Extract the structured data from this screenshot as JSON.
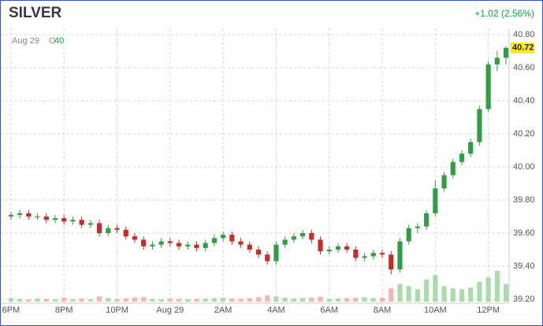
{
  "header": {
    "title": "SILVER",
    "change": "+1.02 (2.56%)"
  },
  "chart_data": {
    "type": "candlestick",
    "legend": {
      "date": "Aug 29",
      "open_label": "O",
      "open_value": "40"
    },
    "x": [
      0,
      20,
      40,
      60,
      80,
      100,
      120,
      140,
      160,
      180,
      200,
      220,
      240,
      260,
      280,
      300,
      320,
      340,
      360,
      380,
      400,
      420,
      440,
      460,
      480,
      500,
      520,
      540,
      560,
      580,
      600,
      620,
      640,
      660,
      680,
      700,
      720,
      740,
      760,
      780,
      800,
      820,
      840,
      860,
      880,
      900,
      920,
      940,
      960,
      980,
      1000,
      1020,
      1040,
      1060,
      1080,
      1100,
      1120
    ],
    "open": [
      39.7,
      39.71,
      39.72,
      39.7,
      39.7,
      39.68,
      39.69,
      39.67,
      39.68,
      39.65,
      39.66,
      39.6,
      39.63,
      39.62,
      39.58,
      39.56,
      39.52,
      39.53,
      39.55,
      39.54,
      39.52,
      39.53,
      39.51,
      39.54,
      39.57,
      39.59,
      39.55,
      39.53,
      39.5,
      39.47,
      39.43,
      39.53,
      39.56,
      39.58,
      39.6,
      39.56,
      39.49,
      39.5,
      39.52,
      39.5,
      39.45,
      39.46,
      39.48,
      39.47,
      39.38,
      39.55,
      39.63,
      39.64,
      39.72,
      39.87,
      39.95,
      40.03,
      40.08,
      40.15,
      40.35,
      40.62,
      40.66
    ],
    "high": [
      39.73,
      39.74,
      39.74,
      39.72,
      39.72,
      39.71,
      39.71,
      39.7,
      39.7,
      39.68,
      39.68,
      39.65,
      39.65,
      39.64,
      39.6,
      39.58,
      39.55,
      39.57,
      39.57,
      39.56,
      39.55,
      39.55,
      39.56,
      39.59,
      39.61,
      39.61,
      39.57,
      39.55,
      39.52,
      39.49,
      39.55,
      39.58,
      39.6,
      39.62,
      39.62,
      39.58,
      39.52,
      39.54,
      39.54,
      39.52,
      39.48,
      39.5,
      39.5,
      39.49,
      39.57,
      39.65,
      39.66,
      39.74,
      39.92,
      39.97,
      40.05,
      40.1,
      40.17,
      40.37,
      40.64,
      40.7,
      40.73
    ],
    "low": [
      39.68,
      39.69,
      39.68,
      39.68,
      39.66,
      39.66,
      39.65,
      39.65,
      39.63,
      39.63,
      39.58,
      39.58,
      39.6,
      39.56,
      39.54,
      39.5,
      39.5,
      39.51,
      39.52,
      39.5,
      39.5,
      39.49,
      39.49,
      39.52,
      39.55,
      39.53,
      39.51,
      39.48,
      39.45,
      39.41,
      39.41,
      39.51,
      39.54,
      39.56,
      39.54,
      39.47,
      39.47,
      39.48,
      39.48,
      39.43,
      39.43,
      39.44,
      39.45,
      39.35,
      39.36,
      39.53,
      39.6,
      39.62,
      39.7,
      39.85,
      39.93,
      40.01,
      40.06,
      40.13,
      40.33,
      40.58,
      40.62
    ],
    "close": [
      39.71,
      39.72,
      39.7,
      39.7,
      39.68,
      39.69,
      39.67,
      39.68,
      39.65,
      39.66,
      39.6,
      39.63,
      39.62,
      39.58,
      39.56,
      39.52,
      39.53,
      39.55,
      39.54,
      39.52,
      39.53,
      39.51,
      39.54,
      39.57,
      39.59,
      39.55,
      39.53,
      39.5,
      39.47,
      39.43,
      39.53,
      39.56,
      39.58,
      39.6,
      39.56,
      39.49,
      39.5,
      39.52,
      39.5,
      39.45,
      39.46,
      39.48,
      39.47,
      39.38,
      39.55,
      39.63,
      39.64,
      39.72,
      39.87,
      39.95,
      40.03,
      40.08,
      40.15,
      40.35,
      40.62,
      40.66,
      40.72
    ],
    "volume": [
      8,
      6,
      5,
      7,
      6,
      5,
      9,
      6,
      7,
      5,
      12,
      8,
      6,
      7,
      9,
      10,
      6,
      5,
      7,
      6,
      5,
      6,
      7,
      8,
      9,
      7,
      6,
      8,
      10,
      14,
      12,
      9,
      7,
      8,
      9,
      11,
      6,
      7,
      8,
      9,
      10,
      8,
      9,
      30,
      40,
      35,
      28,
      50,
      60,
      35,
      30,
      28,
      32,
      45,
      55,
      70,
      40
    ],
    "volume_ylim": [
      0,
      100
    ],
    "up_color": "#2f9e44",
    "down_color": "#c92a2a",
    "volume_up_color": "#a9dcaa",
    "volume_down_color": "#f5b5b5",
    "xlim": [
      -23,
      1127
    ],
    "xticks": [
      {
        "value": 0,
        "label": "6PM"
      },
      {
        "value": 120,
        "label": "8PM"
      },
      {
        "value": 240,
        "label": "10PM"
      },
      {
        "value": 360,
        "label": "Aug 29"
      },
      {
        "value": 480,
        "label": "2AM"
      },
      {
        "value": 600,
        "label": "4AM"
      },
      {
        "value": 720,
        "label": "6AM"
      },
      {
        "value": 840,
        "label": "8AM"
      },
      {
        "value": 960,
        "label": "10AM"
      },
      {
        "value": 1080,
        "label": "12PM"
      }
    ],
    "ylim": [
      39.2,
      40.8
    ],
    "yticks": [
      {
        "value": 39.2,
        "label": "39.20"
      },
      {
        "value": 39.4,
        "label": "39.40"
      },
      {
        "value": 39.6,
        "label": "39.60"
      },
      {
        "value": 39.8,
        "label": "39.80"
      },
      {
        "value": 40.0,
        "label": "40.00"
      },
      {
        "value": 40.2,
        "label": "40.20"
      },
      {
        "value": 40.4,
        "label": "40.40"
      },
      {
        "value": 40.6,
        "label": "40.60"
      },
      {
        "value": 40.8,
        "label": "40.80"
      }
    ],
    "grid": true
  }
}
